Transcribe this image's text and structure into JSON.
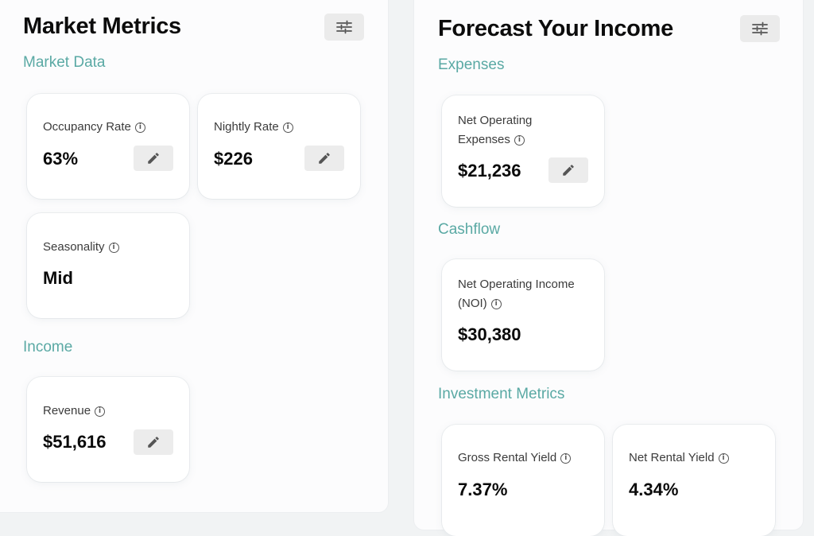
{
  "left_panel": {
    "title": "Market Metrics",
    "sections": {
      "market_data": "Market Data",
      "income": "Income"
    },
    "cards": {
      "occupancy": {
        "label": "Occupancy Rate",
        "value": "63%"
      },
      "nightly": {
        "label": "Nightly Rate",
        "value": "$226"
      },
      "seasonality": {
        "label": "Seasonality",
        "value": "Mid"
      },
      "revenue": {
        "label": "Revenue",
        "value": "$51,616"
      }
    }
  },
  "right_panel": {
    "title": "Forecast Your Income",
    "sections": {
      "expenses": "Expenses",
      "cashflow": "Cashflow",
      "investment": "Investment Metrics"
    },
    "cards": {
      "net_operating_expenses": {
        "label_line1": "Net Operating",
        "label_line2": "Expenses",
        "value": "$21,236"
      },
      "noi": {
        "label_line1": "Net Operating Income",
        "label_line2": "(NOI)",
        "value": "$30,380"
      },
      "gross_yield": {
        "label": "Gross Rental Yield",
        "value": "7.37%"
      },
      "net_yield": {
        "label": "Net Rental Yield",
        "value": "4.34%"
      }
    }
  },
  "icons": {
    "info": "info-icon",
    "edit": "pencil-icon",
    "filter": "sliders-icon"
  },
  "colors": {
    "section_accent": "#5aa9a4",
    "panel_bg": "#fcfcfd",
    "page_bg": "#f1f3f4",
    "button_bg": "#ebebeb"
  }
}
